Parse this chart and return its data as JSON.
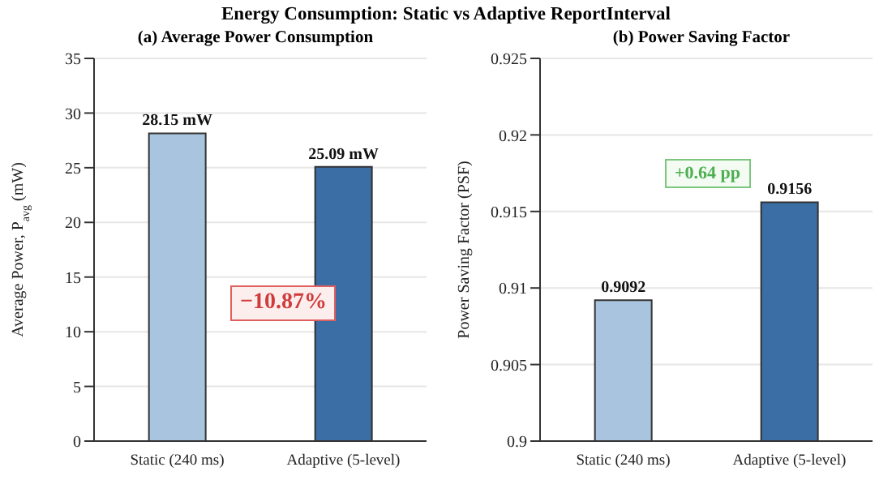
{
  "chart_data": [
    {
      "type": "bar",
      "title": "Energy Consumption: Static vs Adaptive ReportInterval",
      "subtitle": "(a) Average Power Consumption",
      "ylabel": "Average Power, P$_{avg}$ (mW)",
      "categories": [
        "Static (240 ms)",
        "Adaptive (5-level)"
      ],
      "values": [
        28.15,
        25.09
      ],
      "colors": [
        "#a8c4de",
        "#3a6ea5"
      ],
      "value_labels": [
        "28.15 mW",
        "25.09 mW"
      ],
      "ylim": [
        0,
        35
      ],
      "yticks": [
        0,
        5,
        10,
        15,
        20,
        25,
        30,
        35
      ],
      "grid": "y",
      "annotations": [
        "−10.87%"
      ]
    },
    {
      "type": "bar",
      "title": "(b) Power Saving Factor",
      "ylabel": "Power Saving Factor (PSF)",
      "categories": [
        "Static (240 ms)",
        "Adaptive (5-level)"
      ],
      "values": [
        0.9092,
        0.9156
      ],
      "colors": [
        "#a8c4de",
        "#3a6ea5"
      ],
      "data_labels": true,
      "ylim": [
        0.9,
        0.925
      ],
      "yticks": [
        0.9,
        0.905,
        0.91,
        0.915,
        0.92,
        0.925
      ],
      "grid": "y",
      "annotations": [
        "+0.64 pp"
      ]
    }
  ]
}
